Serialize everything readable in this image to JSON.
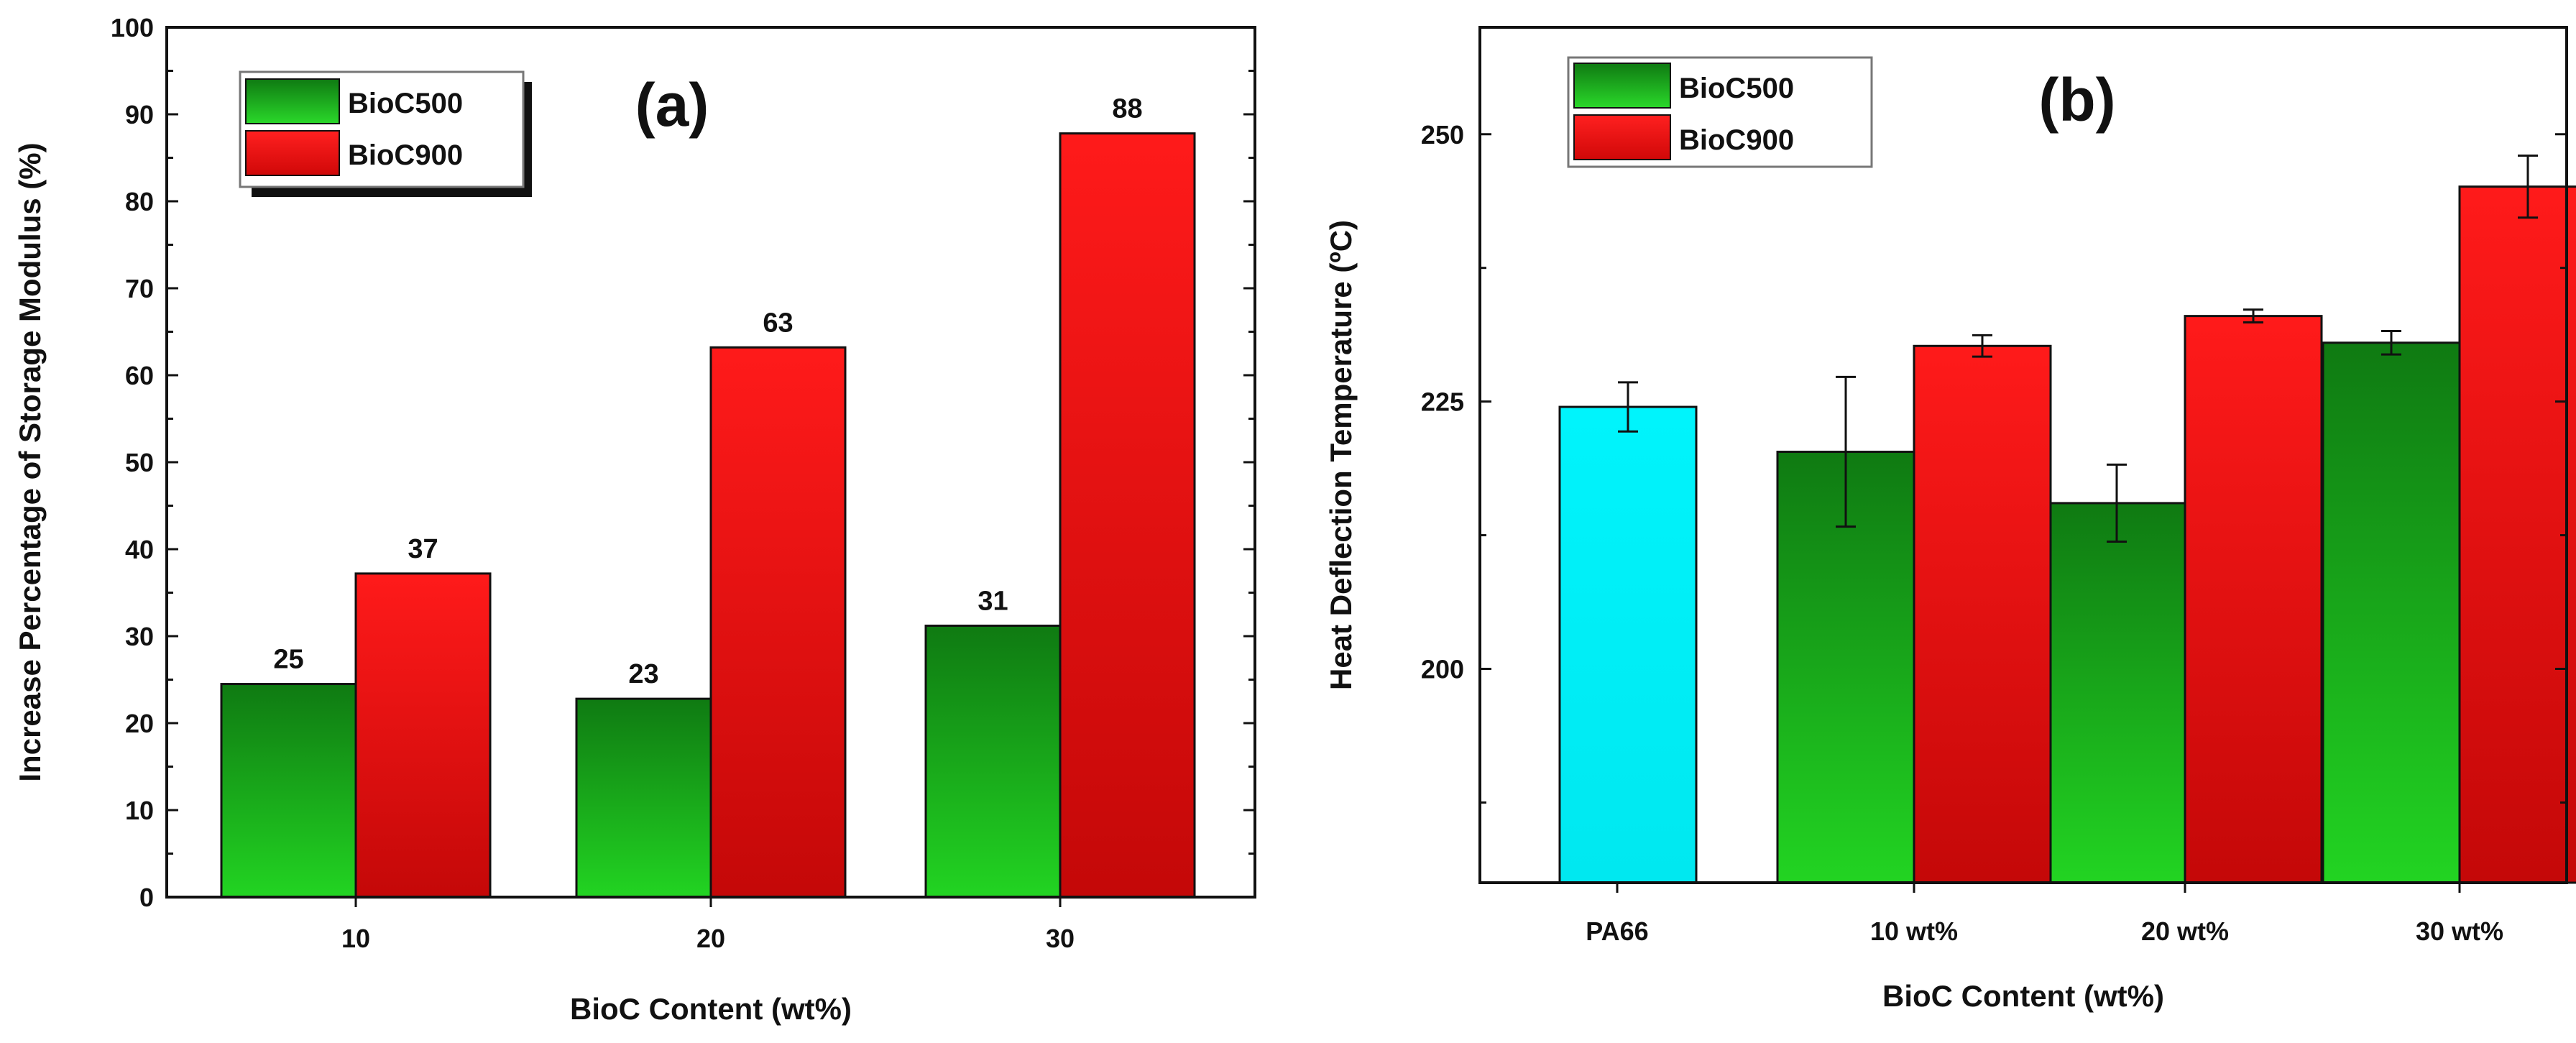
{
  "colors": {
    "BioC500": "#1a9a1a",
    "BioC500_light": "#22d422",
    "BioC500_dark": "#0f7a12",
    "BioC900": "#f01010",
    "BioC900_dark": "#c40808",
    "PA66": "#00f0f8",
    "axis": "#111111"
  },
  "chart_data": [
    {
      "type": "bar",
      "panel_label": "(a)",
      "title": "",
      "xlabel": "BioC Content (wt%)",
      "ylabel": "Increase Percentage of Storage Modulus (%)",
      "ylim": [
        0,
        100
      ],
      "yticks": [
        0,
        10,
        20,
        30,
        40,
        50,
        60,
        70,
        80,
        90,
        100
      ],
      "categories": [
        "10",
        "20",
        "30"
      ],
      "legend": [
        "BioC500",
        "BioC900"
      ],
      "series": [
        {
          "name": "BioC500",
          "values": [
            24.5,
            22.8,
            31.2
          ],
          "labels": [
            "25",
            "23",
            "31"
          ]
        },
        {
          "name": "BioC900",
          "values": [
            37.2,
            63.2,
            87.8
          ],
          "labels": [
            "37",
            "63",
            "88"
          ]
        }
      ]
    },
    {
      "type": "bar",
      "panel_label": "(b)",
      "title": "",
      "xlabel": "BioC Content (wt%)",
      "ylabel": "Heat Deflection Temperature (ºC)",
      "ylim": [
        180,
        260
      ],
      "yticks": [
        200,
        225,
        250
      ],
      "categories": [
        "PA66",
        "10 wt%",
        "20 wt%",
        "30 wt%"
      ],
      "legend": [
        "BioC500",
        "BioC900"
      ],
      "series": [
        {
          "name": "PA66",
          "values": [
            224.5,
            null,
            null,
            null
          ],
          "errors": [
            2.3,
            null,
            null,
            null
          ]
        },
        {
          "name": "BioC500",
          "values": [
            null,
            220.3,
            215.5,
            230.5
          ],
          "errors": [
            null,
            7.0,
            3.6,
            1.1
          ]
        },
        {
          "name": "BioC900",
          "values": [
            null,
            230.2,
            233.0,
            245.1
          ],
          "errors": [
            null,
            1.0,
            0.6,
            2.9
          ]
        }
      ]
    }
  ]
}
